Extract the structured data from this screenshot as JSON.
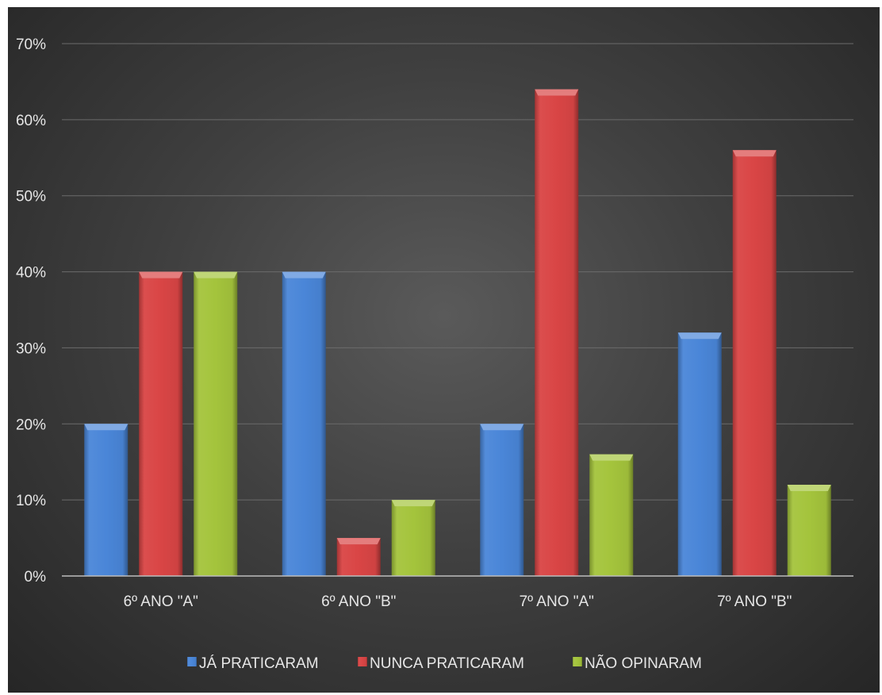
{
  "chart_data": {
    "type": "bar",
    "title": "",
    "xlabel": "",
    "ylabel": "",
    "categories": [
      "6º ANO \"A\"",
      "6º ANO \"B\"",
      "7º ANO \"A\"",
      "7º ANO \"B\""
    ],
    "series": [
      {
        "name": "JÁ PRATICARAM",
        "values": [
          20,
          40,
          20,
          32
        ],
        "color": "#4a86d8"
      },
      {
        "name": "NUNCA PRATICARAM",
        "values": [
          40,
          5,
          64,
          56
        ],
        "color": "#d94545"
      },
      {
        "name": "NÃO OPINARAM",
        "values": [
          40,
          10,
          16,
          12
        ],
        "color": "#a4c43c"
      }
    ],
    "ylim": [
      0,
      70
    ],
    "yticks": [
      0,
      10,
      20,
      30,
      40,
      50,
      60,
      70
    ],
    "ytick_labels": [
      "0%",
      "10%",
      "20%",
      "30%",
      "40%",
      "50%",
      "60%",
      "70%"
    ],
    "grid": true,
    "legend_position": "bottom"
  }
}
